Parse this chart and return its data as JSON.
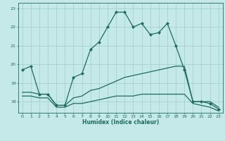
{
  "xlabel": "Humidex (Indice chaleur)",
  "background_color": "#c5e8e8",
  "line_color": "#1e6b60",
  "grid_color": "#9ecece",
  "spine_color": "#1e6b60",
  "xlim": [
    -0.5,
    23.5
  ],
  "ylim": [
    17.4,
    23.3
  ],
  "yticks": [
    18,
    19,
    20,
    21,
    22,
    23
  ],
  "xticks": [
    0,
    1,
    2,
    3,
    4,
    5,
    6,
    7,
    8,
    9,
    10,
    11,
    12,
    13,
    14,
    15,
    16,
    17,
    18,
    19,
    20,
    21,
    22,
    23
  ],
  "line1_x": [
    0,
    1,
    2,
    3,
    4,
    5,
    6,
    7,
    8,
    9,
    10,
    11,
    12,
    13,
    14,
    15,
    16,
    17,
    18,
    19,
    20,
    21,
    22,
    23
  ],
  "line1_y": [
    19.7,
    19.9,
    18.4,
    18.4,
    17.8,
    17.8,
    19.3,
    19.5,
    20.8,
    21.2,
    22.0,
    22.8,
    22.8,
    22.0,
    22.2,
    21.6,
    21.7,
    22.2,
    21.0,
    19.7,
    18.0,
    18.0,
    17.9,
    17.6
  ],
  "line2_x": [
    0,
    1,
    2,
    3,
    4,
    5,
    6,
    7,
    8,
    9,
    10,
    11,
    12,
    13,
    14,
    15,
    16,
    17,
    18,
    19,
    20,
    21,
    22,
    23
  ],
  "line2_y": [
    18.5,
    18.5,
    18.4,
    18.4,
    17.8,
    17.8,
    18.2,
    18.3,
    18.6,
    18.7,
    18.9,
    19.1,
    19.3,
    19.4,
    19.5,
    19.6,
    19.7,
    19.8,
    19.9,
    19.9,
    18.0,
    18.0,
    18.0,
    17.7
  ],
  "line3_x": [
    0,
    1,
    2,
    3,
    4,
    5,
    6,
    7,
    8,
    9,
    10,
    11,
    12,
    13,
    14,
    15,
    16,
    17,
    18,
    19,
    20,
    21,
    22,
    23
  ],
  "line3_y": [
    18.3,
    18.3,
    18.2,
    18.2,
    17.7,
    17.7,
    17.9,
    17.9,
    18.0,
    18.1,
    18.2,
    18.3,
    18.3,
    18.3,
    18.4,
    18.4,
    18.4,
    18.4,
    18.4,
    18.4,
    17.9,
    17.8,
    17.7,
    17.5
  ]
}
